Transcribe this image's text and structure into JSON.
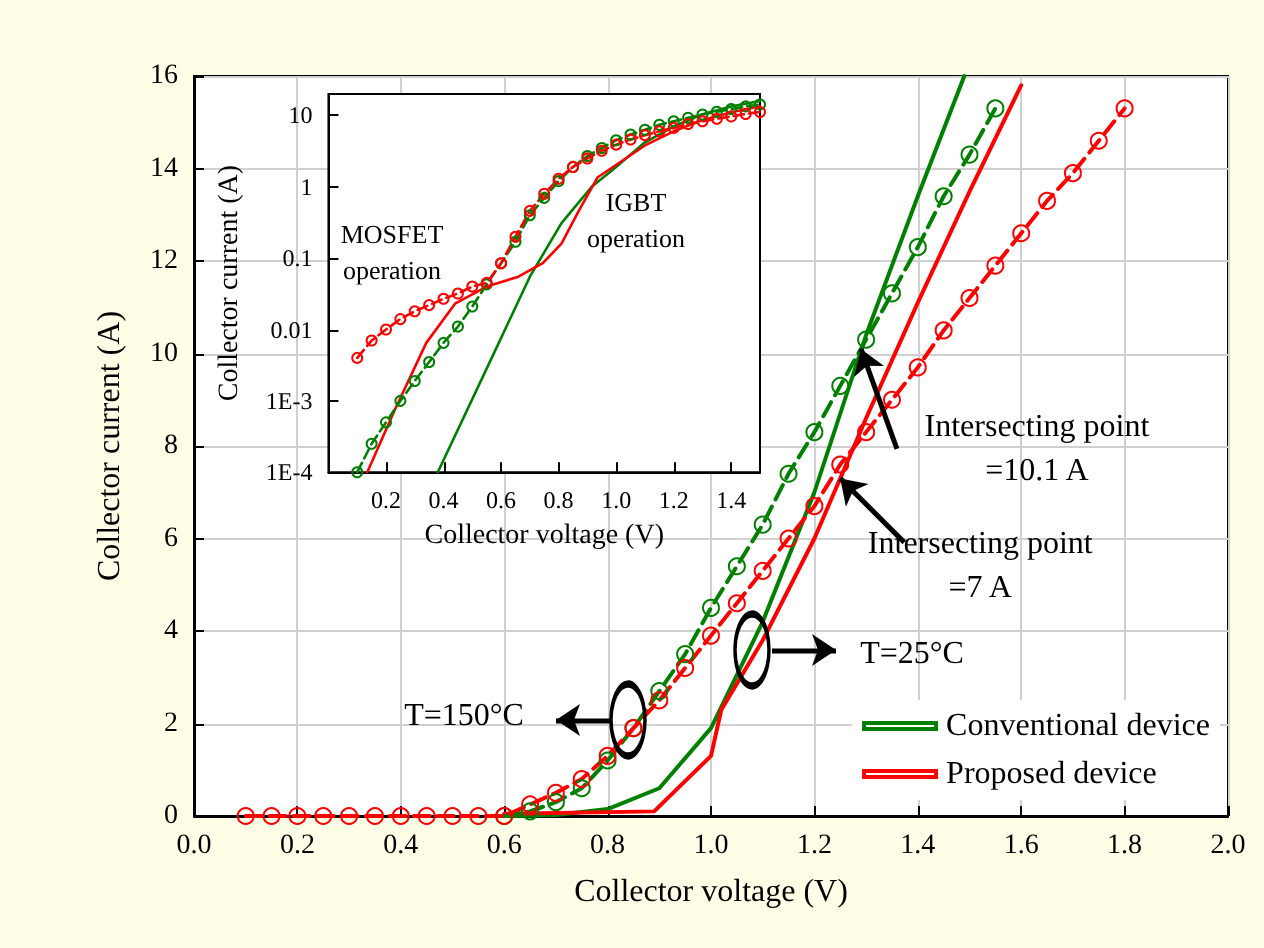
{
  "chart_data": [
    {
      "type": "line",
      "xlabel": "Collector voltage (V)",
      "ylabel": "Collector current (A)",
      "xlim": [
        0,
        2
      ],
      "xticks": [
        {
          "value": 0,
          "label": "0.0"
        },
        0.2,
        0.4,
        0.6,
        0.8,
        {
          "value": 1,
          "label": "1.0"
        },
        1.2,
        1.4,
        1.6,
        1.8,
        {
          "value": 2,
          "label": "2.0"
        }
      ],
      "ylim": [
        0,
        16
      ],
      "yticks": [
        0,
        2,
        4,
        6,
        8,
        10,
        12,
        14,
        16
      ],
      "grid": true,
      "legend": "bottom right",
      "series": [
        {
          "name": "Conventional device",
          "color": "#008000",
          "marker": "none",
          "line_style": "solid",
          "x": [
            0.6,
            0.7,
            0.8,
            0.9,
            1.0,
            1.1,
            1.2,
            1.3,
            1.4,
            1.49
          ],
          "values": [
            0,
            0.02,
            0.15,
            0.6,
            1.9,
            4.2,
            7.0,
            10.4,
            13.4,
            16
          ]
        },
        {
          "name": "Proposed device",
          "color": "#ff0000",
          "marker": "none",
          "line_style": "solid",
          "x": [
            0.6,
            0.89,
            1.0,
            1.02,
            1.1,
            1.2,
            1.3,
            1.4,
            1.5,
            1.6
          ],
          "values": [
            0.05,
            0.1,
            1.3,
            2.3,
            3.8,
            6.0,
            8.6,
            11.1,
            13.5,
            15.8
          ]
        },
        {
          "color": "#008000",
          "marker": "circle",
          "line_style": "dashed",
          "x": [
            0.6,
            0.65,
            0.7,
            0.75,
            0.8,
            0.85,
            0.9,
            0.95,
            1.0,
            1.05,
            1.1,
            1.15,
            1.2,
            1.25,
            1.3,
            1.35,
            1.4,
            1.45,
            1.5,
            1.55
          ],
          "values": [
            0,
            0.1,
            0.3,
            0.6,
            1.2,
            1.9,
            2.7,
            3.5,
            4.5,
            5.4,
            6.3,
            7.4,
            8.3,
            9.3,
            10.3,
            11.3,
            12.3,
            13.4,
            14.3,
            15.3
          ]
        },
        {
          "color": "#ff0000",
          "marker": "circle",
          "line_style": "dashed",
          "x": [
            0.1,
            0.15,
            0.2,
            0.25,
            0.3,
            0.35,
            0.4,
            0.45,
            0.5,
            0.55,
            0.6,
            0.65,
            0.7,
            0.75,
            0.8,
            0.85,
            0.9,
            0.95,
            1.0,
            1.05,
            1.1,
            1.15,
            1.2,
            1.25,
            1.3,
            1.35,
            1.4,
            1.45,
            1.5,
            1.55,
            1.6,
            1.65,
            1.7,
            1.75,
            1.8
          ],
          "values": [
            0,
            0,
            0,
            0,
            0,
            0,
            0,
            0,
            0,
            0,
            0,
            0.25,
            0.5,
            0.8,
            1.3,
            1.9,
            2.5,
            3.2,
            3.9,
            4.6,
            5.3,
            6.0,
            6.7,
            7.6,
            8.3,
            9.0,
            9.7,
            10.5,
            11.2,
            11.9,
            12.6,
            13.3,
            13.9,
            14.6,
            15.3
          ]
        }
      ],
      "annotations": [
        {
          "text": "Intersecting point\n=10.1 A",
          "x": 1.29,
          "y": 10.1
        },
        {
          "text": "Intersecting point\n=7 A",
          "x": 1.25,
          "y": 7.3
        },
        "T=150°C",
        "T=25°C"
      ]
    },
    {
      "type": "line",
      "xlabel": "Collector voltage (V)",
      "ylabel": "Collector current (A)",
      "log": "y",
      "xlim": [
        0,
        1.5
      ],
      "xticks": [
        0.2,
        0.4,
        0.6,
        0.8,
        {
          "value": 1,
          "label": "1.0"
        },
        1.2,
        1.4
      ],
      "ylim": [
        0.0001,
        20
      ],
      "yticks": [
        {
          "value": 0.0001,
          "label": "1E-4"
        },
        {
          "value": 0.001,
          "label": "1E-3"
        },
        0.01,
        0.1,
        1,
        10
      ],
      "grid": false,
      "series": [
        {
          "color": "#008000",
          "marker": "none",
          "line_style": "solid",
          "x": [
            0.38,
            0.57,
            0.7,
            0.81,
            0.915,
            1.0,
            1.1,
            1.2,
            1.3,
            1.4,
            1.5
          ],
          "values": [
            0.0001,
            0.0042,
            0.055,
            0.31,
            1.0,
            1.9,
            4.2,
            7.0,
            10.4,
            13.4,
            16
          ]
        },
        {
          "color": "#ff0000",
          "marker": "none",
          "line_style": "solid",
          "x": [
            0.135,
            0.23,
            0.34,
            0.44,
            0.55,
            0.66,
            0.745,
            0.81,
            0.87,
            0.935,
            1.02,
            1.1,
            1.2,
            1.3,
            1.4,
            1.5
          ],
          "values": [
            0.0001,
            0.00074,
            0.0065,
            0.023,
            0.04,
            0.055,
            0.085,
            0.16,
            0.46,
            1.35,
            2.3,
            3.8,
            6.0,
            8.6,
            11.1,
            13.5
          ]
        },
        {
          "color": "#008000",
          "marker": "circle",
          "line_style": "dashed",
          "x": [
            0.1,
            0.15,
            0.2,
            0.25,
            0.3,
            0.35,
            0.4,
            0.45,
            0.5,
            0.55,
            0.6,
            0.65,
            0.7,
            0.75,
            0.8,
            0.85,
            0.9,
            0.95,
            1.0,
            1.05,
            1.1,
            1.15,
            1.2,
            1.25,
            1.3,
            1.35,
            1.4,
            1.45,
            1.5
          ],
          "values": [
            0.0001,
            0.00025,
            0.0005,
            0.001,
            0.0019,
            0.0035,
            0.0065,
            0.011,
            0.021,
            0.043,
            0.085,
            0.17,
            0.4,
            0.7,
            1.2,
            1.9,
            2.7,
            3.5,
            4.5,
            5.4,
            6.3,
            7.4,
            8.3,
            9.3,
            10.3,
            11.3,
            12.3,
            13.4,
            14.3
          ]
        },
        {
          "color": "#ff0000",
          "marker": "circle",
          "line_style": "dashed",
          "x": [
            0.1,
            0.15,
            0.2,
            0.25,
            0.3,
            0.35,
            0.4,
            0.45,
            0.5,
            0.55,
            0.6,
            0.65,
            0.7,
            0.75,
            0.8,
            0.85,
            0.9,
            0.95,
            1.0,
            1.05,
            1.1,
            1.15,
            1.2,
            1.25,
            1.3,
            1.35,
            1.4,
            1.45,
            1.5
          ],
          "values": [
            0.004,
            0.007,
            0.01,
            0.014,
            0.018,
            0.022,
            0.027,
            0.032,
            0.04,
            0.045,
            0.085,
            0.2,
            0.46,
            0.8,
            1.3,
            1.9,
            2.5,
            3.2,
            3.9,
            4.6,
            5.3,
            6.0,
            6.7,
            7.6,
            8.3,
            9.0,
            9.7,
            10.5,
            11.2
          ]
        }
      ],
      "annotations": [
        "MOSFET\noperation",
        "IGBT\noperation"
      ]
    }
  ]
}
